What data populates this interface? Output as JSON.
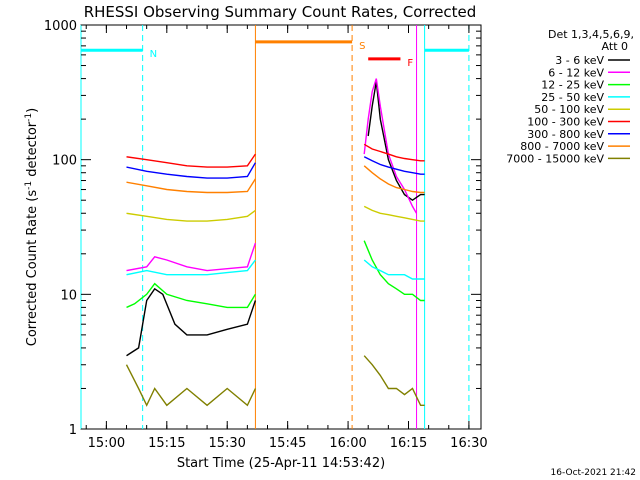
{
  "chart_data": {
    "type": "line",
    "title": "RHESSI Observing Summary Count Rates, Corrected",
    "xlabel": "Start Time (25-Apr-11 14:53:42)",
    "ylabel": "Corrected Count Rate (s-1 detector-1)",
    "ylabel_parts": {
      "main": "Corrected Count Rate (s",
      "sup1": "-1",
      "mid": " detector",
      "sup2": "-1",
      "end": ")"
    },
    "yscale": "log",
    "ylim": [
      1,
      1000
    ],
    "xlim": [
      "14:53:42",
      "16:33"
    ],
    "x_ticks": [
      "15:00",
      "15:15",
      "15:30",
      "15:45",
      "16:00",
      "16:15",
      "16:30"
    ],
    "y_ticks": [
      "1",
      "10",
      "100",
      "1000"
    ],
    "legend": {
      "header_line1": "Det 1,3,4,5,6,9,",
      "header_line2": "Att 0",
      "placement": "top-right"
    },
    "series": [
      {
        "name": "3 - 6 keV",
        "color": "#000000",
        "segments": [
          [
            [
              "15:05",
              3.5
            ],
            [
              "15:08",
              4
            ],
            [
              "15:10",
              9
            ],
            [
              "15:12",
              11
            ],
            [
              "15:14",
              10
            ],
            [
              "15:17",
              6
            ],
            [
              "15:20",
              5
            ],
            [
              "15:25",
              5
            ],
            [
              "15:30",
              5.5
            ],
            [
              "15:35",
              6
            ],
            [
              "15:37",
              9
            ]
          ],
          [
            [
              "16:05",
              150
            ],
            [
              "16:06",
              250
            ],
            [
              "16:07",
              380
            ],
            [
              "16:08",
              200
            ],
            [
              "16:10",
              100
            ],
            [
              "16:12",
              70
            ],
            [
              "16:14",
              55
            ],
            [
              "16:16",
              50
            ],
            [
              "16:18",
              55
            ],
            [
              "16:19",
              55
            ]
          ]
        ]
      },
      {
        "name": "6 - 12 keV",
        "color": "#ff00ff",
        "segments": [
          [
            [
              "15:05",
              15
            ],
            [
              "15:10",
              16
            ],
            [
              "15:12",
              19
            ],
            [
              "15:15",
              18
            ],
            [
              "15:20",
              16
            ],
            [
              "15:25",
              15
            ],
            [
              "15:30",
              15.5
            ],
            [
              "15:35",
              16
            ],
            [
              "15:37",
              24
            ]
          ],
          [
            [
              "16:04",
              110
            ],
            [
              "16:05",
              200
            ],
            [
              "16:06",
              320
            ],
            [
              "16:07",
              400
            ],
            [
              "16:08",
              250
            ],
            [
              "16:10",
              110
            ],
            [
              "16:12",
              75
            ],
            [
              "16:14",
              60
            ],
            [
              "16:16",
              45
            ],
            [
              "16:17",
              40
            ]
          ]
        ]
      },
      {
        "name": "12 - 25 keV",
        "color": "#00ff00",
        "segments": [
          [
            [
              "15:05",
              8
            ],
            [
              "15:07",
              8.5
            ],
            [
              "15:10",
              10
            ],
            [
              "15:12",
              12
            ],
            [
              "15:15",
              10
            ],
            [
              "15:20",
              9
            ],
            [
              "15:25",
              8.5
            ],
            [
              "15:30",
              8
            ],
            [
              "15:35",
              8
            ],
            [
              "15:37",
              10
            ]
          ],
          [
            [
              "16:04",
              25
            ],
            [
              "16:06",
              18
            ],
            [
              "16:08",
              14
            ],
            [
              "16:10",
              12
            ],
            [
              "16:12",
              11
            ],
            [
              "16:14",
              10
            ],
            [
              "16:16",
              10
            ],
            [
              "16:18",
              9
            ],
            [
              "16:19",
              9
            ]
          ]
        ]
      },
      {
        "name": "25 - 50 keV",
        "color": "#00ffff",
        "segments": [
          [
            [
              "15:05",
              14
            ],
            [
              "15:10",
              15
            ],
            [
              "15:15",
              14
            ],
            [
              "15:20",
              14
            ],
            [
              "15:25",
              14
            ],
            [
              "15:30",
              14.5
            ],
            [
              "15:35",
              15
            ],
            [
              "15:37",
              18
            ]
          ],
          [
            [
              "16:04",
              18
            ],
            [
              "16:06",
              16
            ],
            [
              "16:08",
              15
            ],
            [
              "16:10",
              14
            ],
            [
              "16:12",
              14
            ],
            [
              "16:14",
              14
            ],
            [
              "16:16",
              13
            ],
            [
              "16:18",
              13
            ],
            [
              "16:19",
              13
            ]
          ]
        ]
      },
      {
        "name": "50 - 100 keV",
        "color": "#cccc00",
        "segments": [
          [
            [
              "15:05",
              40
            ],
            [
              "15:10",
              38
            ],
            [
              "15:15",
              36
            ],
            [
              "15:20",
              35
            ],
            [
              "15:25",
              35
            ],
            [
              "15:30",
              36
            ],
            [
              "15:35",
              38
            ],
            [
              "15:37",
              42
            ]
          ],
          [
            [
              "16:04",
              45
            ],
            [
              "16:06",
              42
            ],
            [
              "16:08",
              40
            ],
            [
              "16:10",
              39
            ],
            [
              "16:12",
              38
            ],
            [
              "16:14",
              37
            ],
            [
              "16:16",
              36
            ],
            [
              "16:18",
              35
            ],
            [
              "16:19",
              35
            ]
          ]
        ]
      },
      {
        "name": "100 - 300 keV",
        "color": "#ff0000",
        "segments": [
          [
            [
              "15:05",
              105
            ],
            [
              "15:10",
              100
            ],
            [
              "15:15",
              95
            ],
            [
              "15:20",
              90
            ],
            [
              "15:25",
              88
            ],
            [
              "15:30",
              88
            ],
            [
              "15:35",
              90
            ],
            [
              "15:37",
              110
            ]
          ],
          [
            [
              "16:04",
              130
            ],
            [
              "16:06",
              120
            ],
            [
              "16:08",
              115
            ],
            [
              "16:10",
              110
            ],
            [
              "16:12",
              105
            ],
            [
              "16:14",
              102
            ],
            [
              "16:16",
              100
            ],
            [
              "16:18",
              98
            ],
            [
              "16:19",
              98
            ]
          ]
        ]
      },
      {
        "name": "300 - 800 keV",
        "color": "#0000ff",
        "segments": [
          [
            [
              "15:05",
              88
            ],
            [
              "15:10",
              82
            ],
            [
              "15:15",
              78
            ],
            [
              "15:20",
              75
            ],
            [
              "15:25",
              73
            ],
            [
              "15:30",
              73
            ],
            [
              "15:35",
              75
            ],
            [
              "15:37",
              95
            ]
          ],
          [
            [
              "16:04",
              105
            ],
            [
              "16:06",
              98
            ],
            [
              "16:08",
              92
            ],
            [
              "16:10",
              88
            ],
            [
              "16:12",
              85
            ],
            [
              "16:14",
              82
            ],
            [
              "16:16",
              80
            ],
            [
              "16:18",
              78
            ],
            [
              "16:19",
              78
            ]
          ]
        ]
      },
      {
        "name": "800 - 7000 keV",
        "color": "#ff8000",
        "segments": [
          [
            [
              "15:05",
              68
            ],
            [
              "15:10",
              64
            ],
            [
              "15:15",
              60
            ],
            [
              "15:20",
              58
            ],
            [
              "15:25",
              57
            ],
            [
              "15:30",
              57
            ],
            [
              "15:35",
              58
            ],
            [
              "15:37",
              72
            ]
          ],
          [
            [
              "16:04",
              90
            ],
            [
              "16:06",
              80
            ],
            [
              "16:08",
              72
            ],
            [
              "16:10",
              66
            ],
            [
              "16:12",
              62
            ],
            [
              "16:14",
              60
            ],
            [
              "16:16",
              58
            ],
            [
              "16:18",
              57
            ],
            [
              "16:19",
              57
            ]
          ]
        ]
      },
      {
        "name": "7000 - 15000 keV",
        "color": "#808000",
        "segments": [
          [
            [
              "15:05",
              3
            ],
            [
              "15:08",
              2
            ],
            [
              "15:10",
              1.5
            ],
            [
              "15:12",
              2
            ],
            [
              "15:15",
              1.5
            ],
            [
              "15:20",
              2
            ],
            [
              "15:25",
              1.5
            ],
            [
              "15:30",
              2
            ],
            [
              "15:35",
              1.5
            ],
            [
              "15:37",
              2
            ]
          ],
          [
            [
              "16:04",
              3.5
            ],
            [
              "16:06",
              3
            ],
            [
              "16:08",
              2.5
            ],
            [
              "16:10",
              2
            ],
            [
              "16:12",
              2
            ],
            [
              "16:14",
              1.8
            ],
            [
              "16:16",
              2
            ],
            [
              "16:18",
              1.5
            ],
            [
              "16:19",
              1.5
            ]
          ]
        ]
      }
    ],
    "flag_lines": {
      "attenuator_flags": [
        {
          "label": "N",
          "color": "#00ffff",
          "y": 650,
          "x_from": "14:53:42",
          "x_to": "15:09"
        },
        {
          "label": "",
          "color": "#00ffff",
          "y": 650,
          "x_from": "16:19",
          "x_to": "16:30"
        }
      ],
      "saa_flags": [
        {
          "label": "S",
          "color": "#ff8000",
          "y": 750,
          "x_from": "15:37",
          "x_to": "16:01"
        }
      ],
      "flare_flags": [
        {
          "label": "F",
          "color": "#ff0000",
          "y": 560,
          "x_from": "16:05",
          "x_to": "16:13"
        }
      ]
    },
    "vertical_markers": [
      {
        "x": "14:53:42",
        "color": "#00ffff",
        "style": "solid"
      },
      {
        "x": "15:09",
        "color": "#00ffff",
        "style": "dashed"
      },
      {
        "x": "15:37",
        "color": "#ff8000",
        "style": "solid"
      },
      {
        "x": "16:01",
        "color": "#ff8000",
        "style": "dashed"
      },
      {
        "x": "16:17",
        "color": "#ff00ff",
        "style": "solid"
      },
      {
        "x": "16:19",
        "color": "#00ffff",
        "style": "solid"
      },
      {
        "x": "16:30",
        "color": "#00ffff",
        "style": "dashed"
      }
    ],
    "grid": false
  },
  "footer": {
    "timestamp": "16-Oct-2021 21:42"
  }
}
